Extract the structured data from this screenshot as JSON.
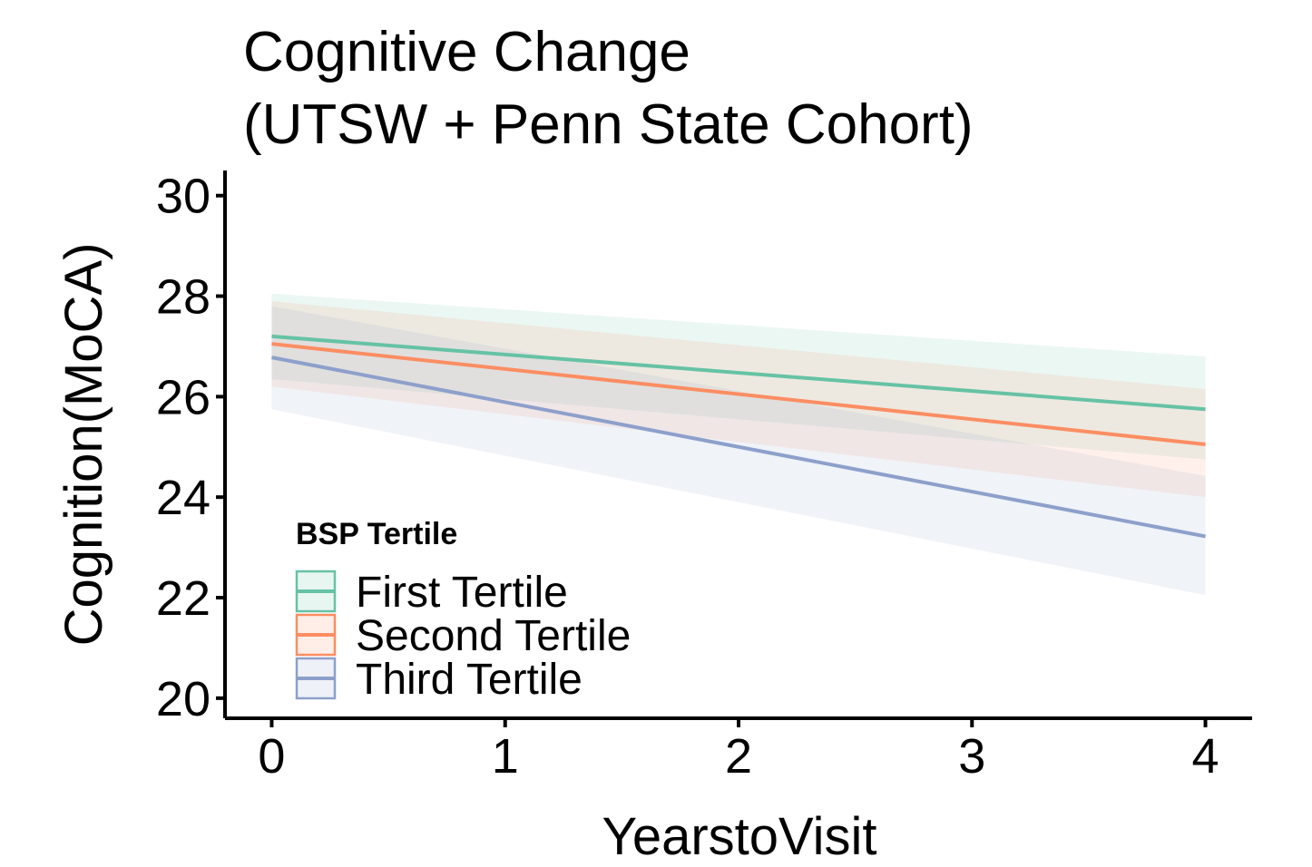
{
  "chart_data": {
    "type": "line",
    "title_lines": [
      "Cognitive Change",
      "(UTSW + Penn State Cohort)"
    ],
    "xlabel": "YearstoVisit",
    "ylabel": "Cognition(MoCA)",
    "x": [
      0,
      4
    ],
    "xlim": [
      -0.2,
      4.2
    ],
    "ylim": [
      19.6,
      30.5
    ],
    "xticks": [
      0,
      1,
      2,
      3,
      4
    ],
    "yticks": [
      20,
      22,
      24,
      26,
      28,
      30
    ],
    "grid": false,
    "legend": {
      "title": "BSP Tertile",
      "position": "bottom-left inside"
    },
    "series": [
      {
        "name": "First Tertile",
        "color": "#66C2A5",
        "values": [
          27.2,
          25.75
        ],
        "lower": [
          26.35,
          24.75
        ],
        "upper": [
          28.05,
          26.8
        ]
      },
      {
        "name": "Second Tertile",
        "color": "#FC8D62",
        "values": [
          27.05,
          25.05
        ],
        "lower": [
          26.2,
          24.0
        ],
        "upper": [
          27.9,
          26.15
        ]
      },
      {
        "name": "Third Tertile",
        "color": "#8DA0CB",
        "values": [
          26.78,
          23.22
        ],
        "lower": [
          25.75,
          22.05
        ],
        "upper": [
          27.8,
          24.42
        ]
      }
    ]
  }
}
